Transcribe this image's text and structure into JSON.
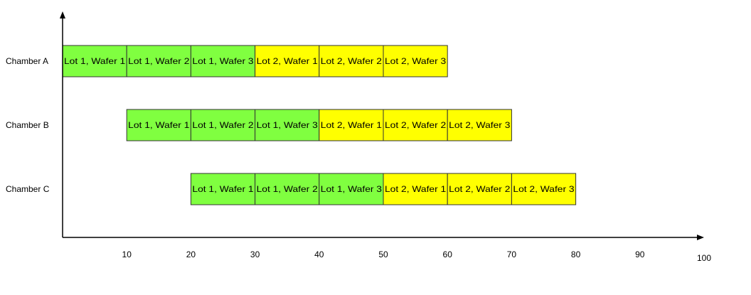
{
  "colors": {
    "lot1": "#80ff40",
    "lot2": "#ffff00",
    "border": "#333333",
    "axis": "#000000"
  },
  "chart_data": {
    "type": "gantt",
    "x_ticks": [
      10,
      20,
      30,
      40,
      50,
      60,
      70,
      80,
      90,
      100
    ],
    "xlim": [
      0,
      100
    ],
    "rows": [
      {
        "name": "Chamber A",
        "tasks": [
          {
            "label": "Lot 1, Wafer 1",
            "lot": 1,
            "start": 0,
            "end": 10
          },
          {
            "label": "Lot 1, Wafer 2",
            "lot": 1,
            "start": 10,
            "end": 20
          },
          {
            "label": "Lot 1, Wafer 3",
            "lot": 1,
            "start": 20,
            "end": 30
          },
          {
            "label": "Lot 2, Wafer 1",
            "lot": 2,
            "start": 30,
            "end": 40
          },
          {
            "label": "Lot 2, Wafer 2",
            "lot": 2,
            "start": 40,
            "end": 50
          },
          {
            "label": "Lot 2, Wafer 3",
            "lot": 2,
            "start": 50,
            "end": 60
          }
        ]
      },
      {
        "name": "Chamber B",
        "tasks": [
          {
            "label": "Lot 1, Wafer 1",
            "lot": 1,
            "start": 10,
            "end": 20
          },
          {
            "label": "Lot 1, Wafer 2",
            "lot": 1,
            "start": 20,
            "end": 30
          },
          {
            "label": "Lot 1, Wafer 3",
            "lot": 1,
            "start": 30,
            "end": 40
          },
          {
            "label": "Lot 2, Wafer 1",
            "lot": 2,
            "start": 40,
            "end": 50
          },
          {
            "label": "Lot 2, Wafer 2",
            "lot": 2,
            "start": 50,
            "end": 60
          },
          {
            "label": "Lot 2, Wafer 3",
            "lot": 2,
            "start": 60,
            "end": 70
          }
        ]
      },
      {
        "name": "Chamber C",
        "tasks": [
          {
            "label": "Lot 1, Wafer 1",
            "lot": 1,
            "start": 20,
            "end": 30
          },
          {
            "label": "Lot 1, Wafer 2",
            "lot": 1,
            "start": 30,
            "end": 40
          },
          {
            "label": "Lot 1, Wafer 3",
            "lot": 1,
            "start": 40,
            "end": 50
          },
          {
            "label": "Lot 2, Wafer 1",
            "lot": 2,
            "start": 50,
            "end": 60
          },
          {
            "label": "Lot 2, Wafer 2",
            "lot": 2,
            "start": 60,
            "end": 70
          },
          {
            "label": "Lot 2, Wafer 3",
            "lot": 2,
            "start": 70,
            "end": 80
          }
        ]
      }
    ]
  }
}
